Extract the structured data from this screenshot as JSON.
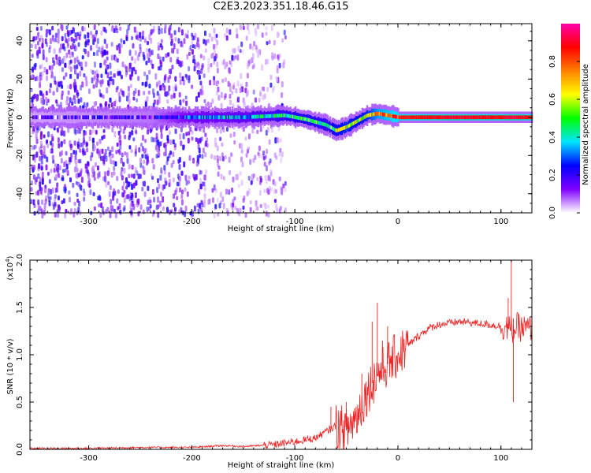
{
  "title": "C2E3.2023.351.18.46.G15",
  "chart_data": [
    {
      "type": "heatmap",
      "xlabel": "Height of straight line (km)",
      "ylabel": "Frequency (Hz)",
      "xlim": [
        -357,
        130
      ],
      "ylim": [
        -50,
        49
      ],
      "xticks": [
        -300,
        -200,
        -100,
        0,
        100
      ],
      "yticks": [
        -40,
        -20,
        0,
        20,
        40
      ],
      "xtick_labels": [
        "-300",
        "-200",
        "-100",
        "0",
        "100"
      ],
      "ytick_labels": [
        "-40",
        "-20",
        "0",
        "20",
        "40"
      ],
      "colorbar": {
        "label": "Normalized spectral amplitude",
        "range": [
          0.0,
          1.0
        ],
        "ticks": [
          0.0,
          0.2,
          0.4,
          0.6,
          0.8
        ],
        "tick_labels": [
          "0.0",
          "0.2",
          "0.4",
          "0.6",
          "0.8"
        ],
        "colors": [
          "#ffffff",
          "#7f00ff",
          "#0000ff",
          "#00e5ff",
          "#00ff00",
          "#ffff00",
          "#ff8000",
          "#ff0000",
          "#ff00aa"
        ]
      },
      "ridge_center_hz": {
        "x": [
          -357,
          -240,
          -200,
          -150,
          -110,
          -90,
          -70,
          -60,
          -50,
          -40,
          -30,
          -20,
          -10,
          0,
          50,
          100,
          110,
          130
        ],
        "y": [
          0,
          0,
          0,
          0,
          1,
          -1,
          -4,
          -7,
          -5,
          -2,
          1,
          2,
          1,
          0,
          0,
          0,
          0,
          0
        ]
      },
      "ridge_peak_amplitude": {
        "x": [
          -357,
          -240,
          -200,
          -150,
          -110,
          -90,
          -70,
          -60,
          -50,
          -40,
          -30,
          -20,
          -10,
          0,
          50,
          100,
          110,
          130
        ],
        "y": [
          0.1,
          0.15,
          0.3,
          0.35,
          0.45,
          0.5,
          0.45,
          0.55,
          0.6,
          0.55,
          0.6,
          0.75,
          0.8,
          0.85,
          0.9,
          0.88,
          0.92,
          0.85
        ]
      },
      "noise_field": "scattered low-amplitude speckle at left (x < -120 km), all frequencies"
    },
    {
      "type": "line",
      "xlabel": "Height of straight line (km)",
      "ylabel": "SNR (10 * v/v)",
      "y_multiplier_label": "(x10",
      "y_multiplier_exp": "4",
      "y_multiplier_close": ")",
      "xlim": [
        -357,
        130
      ],
      "ylim": [
        0.0,
        2.0
      ],
      "xticks": [
        -300,
        -200,
        -100,
        0,
        100
      ],
      "yticks": [
        0.0,
        0.5,
        1.0,
        1.5,
        2.0
      ],
      "xtick_labels": [
        "-300",
        "-200",
        "-100",
        "0",
        "100"
      ],
      "ytick_labels": [
        "0.0",
        "0.5",
        "1.0",
        "1.5",
        "2.0"
      ],
      "color": "#ee2222",
      "series": [
        {
          "x": [
            -357,
            -300,
            -250,
            -200,
            -170,
            -150,
            -120,
            -100,
            -80,
            -60,
            -50,
            -40,
            -30,
            -20,
            -10,
            0,
            10,
            20,
            30,
            40,
            60,
            80,
            100,
            105,
            110,
            115,
            120,
            130
          ],
          "y": [
            0.01,
            0.01,
            0.02,
            0.02,
            0.04,
            0.03,
            0.05,
            0.08,
            0.12,
            0.25,
            0.2,
            0.35,
            0.6,
            0.8,
            0.9,
            1.0,
            1.1,
            1.2,
            1.28,
            1.32,
            1.35,
            1.33,
            1.3,
            1.3,
            1.25,
            1.3,
            1.28,
            1.27
          ]
        }
      ],
      "spikes": {
        "x": [
          -65,
          -50,
          -35,
          -25,
          -20,
          -15,
          -10,
          107,
          110,
          112
        ],
        "y": [
          0.45,
          0.5,
          0.8,
          1.35,
          1.55,
          1.15,
          1.3,
          1.6,
          2.0,
          0.5
        ]
      }
    }
  ]
}
